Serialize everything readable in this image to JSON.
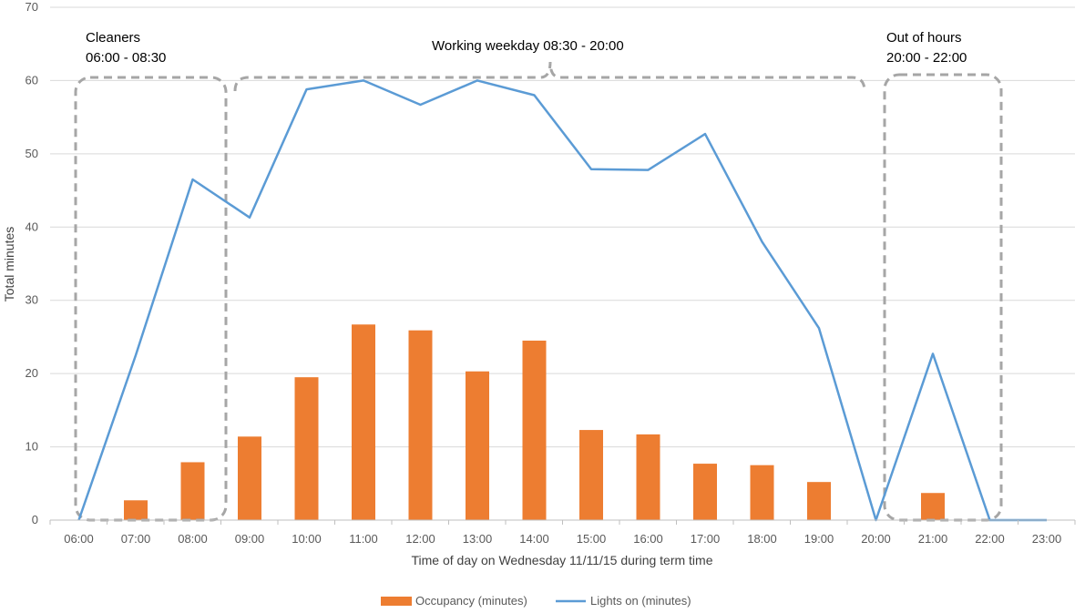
{
  "chart_data": {
    "type": "bar+line",
    "title": "",
    "xlabel": "Time of day on Wednesday 11/11/15 during term time",
    "ylabel": "Total minutes",
    "ylim": [
      0,
      70
    ],
    "yticks": [
      "0",
      "10",
      "20",
      "30",
      "40",
      "50",
      "60",
      "70"
    ],
    "grid": true,
    "legend_position": "bottom",
    "categories": [
      "06:00",
      "07:00",
      "08:00",
      "09:00",
      "10:00",
      "11:00",
      "12:00",
      "13:00",
      "14:00",
      "15:00",
      "16:00",
      "17:00",
      "18:00",
      "19:00",
      "20:00",
      "21:00",
      "22:00",
      "23:00"
    ],
    "series": [
      {
        "name": "Occupancy (minutes)",
        "kind": "bar",
        "color": "#ED7D31",
        "values": [
          0,
          2.7,
          7.9,
          11.4,
          19.5,
          26.7,
          25.9,
          20.3,
          24.5,
          12.3,
          11.7,
          7.7,
          7.5,
          5.2,
          0,
          3.7,
          0,
          0
        ]
      },
      {
        "name": "Lights on (minutes)",
        "kind": "line",
        "color": "#5B9BD5",
        "values": [
          0,
          22.5,
          46.5,
          41.3,
          58.8,
          60.0,
          56.7,
          60.0,
          58.0,
          47.9,
          47.8,
          52.7,
          38.0,
          26.2,
          0,
          22.7,
          0,
          0
        ]
      }
    ],
    "annotations": [
      {
        "line1": "Cleaners",
        "line2": "06:00 - 08:30"
      },
      {
        "line1": "Working weekday 08:30 - 20:00",
        "line2": ""
      },
      {
        "line1": "Out of hours",
        "line2": "20:00 - 22:00"
      }
    ]
  }
}
